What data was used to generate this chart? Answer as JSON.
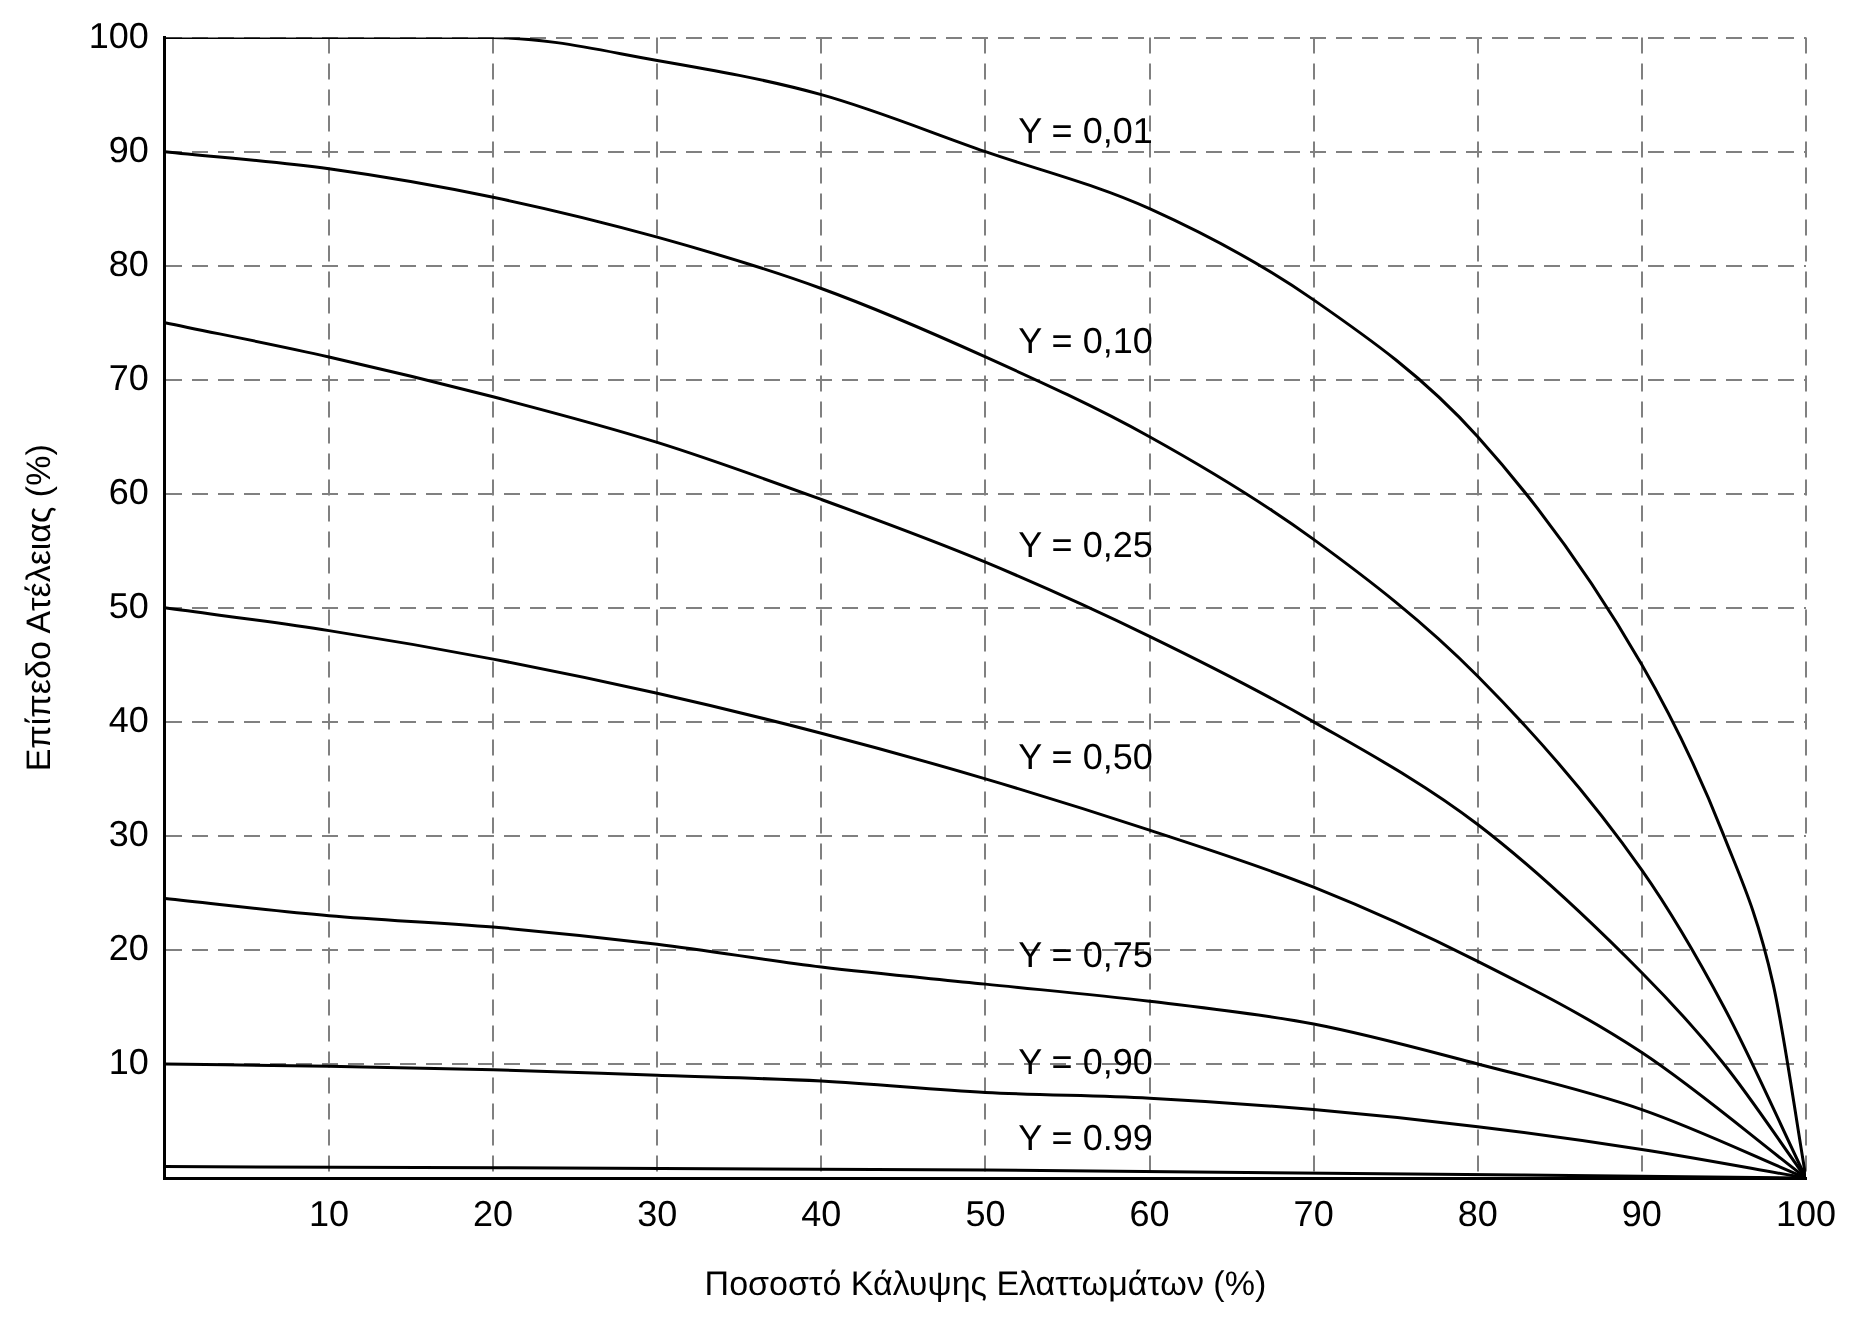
{
  "chart_data": {
    "type": "line",
    "xlabel": "Ποσοστό Κάλυψης Ελαττωμάτων (%)",
    "ylabel": "Επίπεδο Ατέλειας (%)",
    "xlim": [
      0,
      100
    ],
    "ylim": [
      0,
      100
    ],
    "xticks": [
      10,
      20,
      30,
      40,
      50,
      60,
      70,
      80,
      90,
      100
    ],
    "yticks": [
      10,
      20,
      30,
      40,
      50,
      60,
      70,
      80,
      90,
      100
    ],
    "grid": true,
    "legend": false,
    "marker": "none",
    "line_style": "solid",
    "series": [
      {
        "name": "Y = 0,01",
        "color": "#000000",
        "x": [
          0,
          10,
          20,
          30,
          40,
          50,
          60,
          70,
          80,
          90,
          95,
          98,
          100
        ],
        "values": [
          100,
          100,
          100,
          98,
          95,
          90,
          85,
          77,
          65,
          45,
          30,
          17,
          0
        ]
      },
      {
        "name": "Y = 0,10",
        "color": "#000000",
        "x": [
          0,
          10,
          20,
          30,
          40,
          50,
          60,
          70,
          80,
          90,
          95,
          100
        ],
        "values": [
          90,
          88.5,
          86,
          82.5,
          78,
          72,
          65,
          56,
          44,
          27,
          15,
          0
        ]
      },
      {
        "name": "Y = 0,25",
        "color": "#000000",
        "x": [
          0,
          10,
          20,
          30,
          40,
          50,
          60,
          70,
          80,
          90,
          95,
          100
        ],
        "values": [
          75,
          72,
          68.5,
          64.5,
          59.5,
          54,
          47.5,
          40,
          31,
          18,
          10,
          0
        ]
      },
      {
        "name": "Y = 0,50",
        "color": "#000000",
        "x": [
          0,
          10,
          20,
          30,
          40,
          50,
          60,
          70,
          80,
          90,
          100
        ],
        "values": [
          50,
          48,
          45.5,
          42.5,
          39,
          35,
          30.5,
          25.5,
          19,
          11,
          0
        ]
      },
      {
        "name": "Y = 0,75",
        "color": "#000000",
        "x": [
          0,
          10,
          20,
          30,
          40,
          50,
          60,
          70,
          80,
          90,
          100
        ],
        "values": [
          24.5,
          23,
          22,
          20.5,
          18.5,
          17,
          15.5,
          13.5,
          10,
          6,
          0
        ]
      },
      {
        "name": "Y = 0,90",
        "color": "#000000",
        "x": [
          0,
          10,
          20,
          30,
          40,
          50,
          60,
          70,
          80,
          90,
          100
        ],
        "values": [
          10,
          9.8,
          9.5,
          9,
          8.5,
          7.5,
          7,
          6,
          4.5,
          2.5,
          0
        ]
      },
      {
        "name": "Y = 0.99",
        "color": "#000000",
        "x": [
          0,
          50,
          100
        ],
        "values": [
          1,
          0.7,
          0
        ]
      }
    ]
  }
}
